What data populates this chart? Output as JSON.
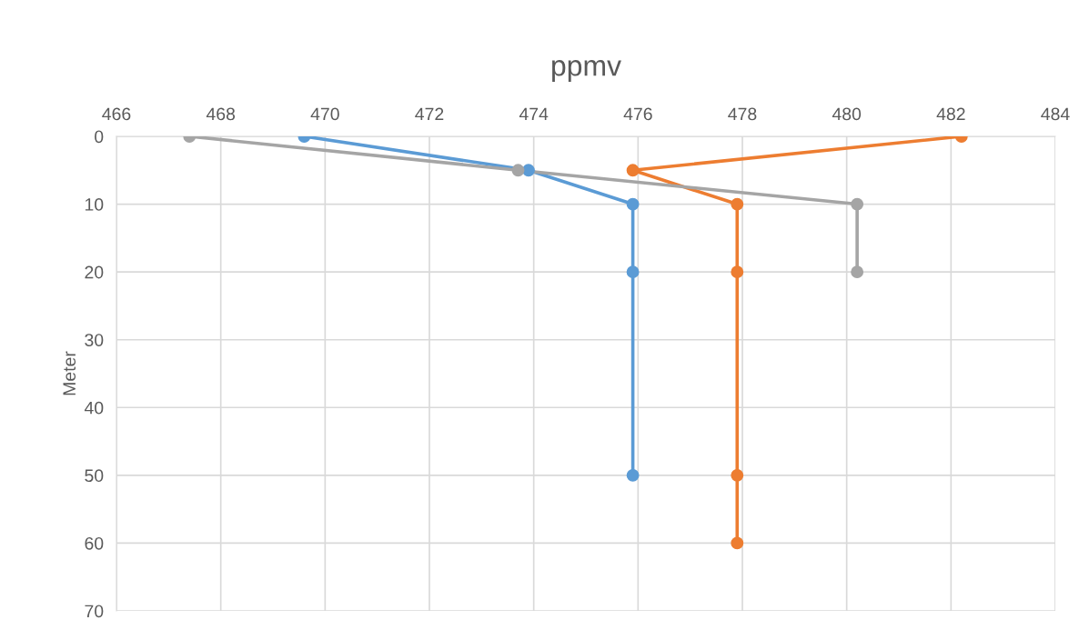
{
  "chart_data": {
    "type": "line",
    "title": "ppmv",
    "ylabel": "Meter",
    "xlim": [
      466,
      484
    ],
    "xticks": [
      466,
      468,
      470,
      472,
      474,
      476,
      478,
      480,
      482,
      484
    ],
    "ylim": [
      70,
      0
    ],
    "yticks": [
      0,
      10,
      20,
      30,
      40,
      50,
      60,
      70
    ],
    "grid": true,
    "marker": "circle",
    "line_style": "solid",
    "series": [
      {
        "color": "#5b9bd5",
        "x": [
          469.6,
          473.9,
          475.9,
          475.9,
          475.9
        ],
        "values": [
          0,
          5,
          10,
          20,
          50
        ]
      },
      {
        "color": "#ed7d31",
        "x": [
          482.2,
          475.9,
          477.9,
          477.9,
          477.9,
          477.9
        ],
        "values": [
          0,
          5,
          10,
          20,
          50,
          60
        ]
      },
      {
        "color": "#a5a5a5",
        "x": [
          467.4,
          473.7,
          480.2,
          480.2
        ],
        "values": [
          0,
          5,
          10,
          20
        ]
      }
    ]
  }
}
